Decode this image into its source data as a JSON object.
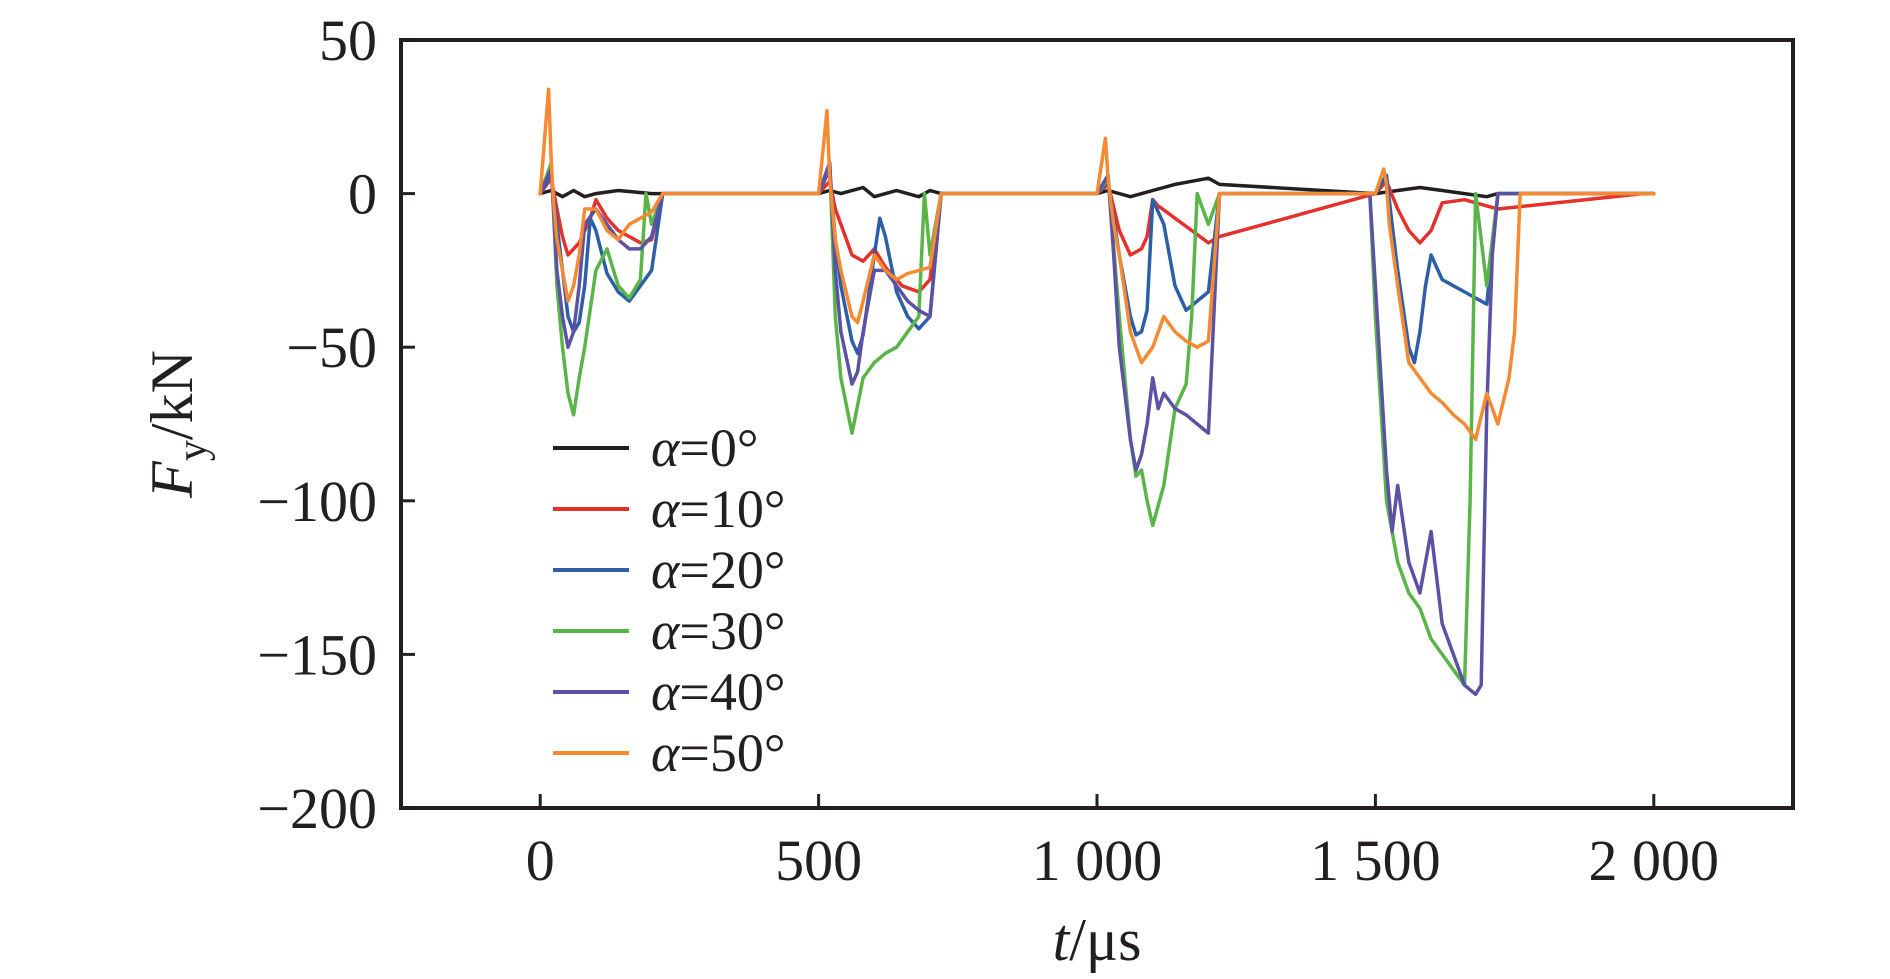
{
  "chart_data": {
    "type": "line",
    "xlabel": {
      "italic": "t",
      "rest": "/μs"
    },
    "ylabel": {
      "italic": "F",
      "sub": "y",
      "rest": "/kN"
    },
    "xlim": [
      -250,
      2250
    ],
    "ylim": [
      -200,
      50
    ],
    "x_ticks": [
      {
        "value": 0,
        "label": "0"
      },
      {
        "value": 500,
        "label": "500"
      },
      {
        "value": 1000,
        "label": "1 000"
      },
      {
        "value": 1500,
        "label": "1 500"
      },
      {
        "value": 2000,
        "label": "2 000"
      }
    ],
    "y_ticks": [
      {
        "value": 50,
        "label": "50"
      },
      {
        "value": 0,
        "label": "0"
      },
      {
        "value": -50,
        "label": "−50"
      },
      {
        "value": -100,
        "label": "−100"
      },
      {
        "value": -150,
        "label": "−150"
      },
      {
        "value": -200,
        "label": "−200"
      }
    ],
    "grid": false,
    "legend_position": "lower-left",
    "series": [
      {
        "name": "α=0°",
        "color": "#231f20",
        "x": [
          0,
          20,
          40,
          60,
          80,
          100,
          140,
          200,
          220,
          500,
          520,
          540,
          580,
          600,
          640,
          680,
          700,
          720,
          1000,
          1020,
          1060,
          1100,
          1140,
          1170,
          1200,
          1220,
          1500,
          1540,
          1580,
          1620,
          1660,
          1700,
          1720,
          1980,
          2000
        ],
        "y": [
          0,
          1,
          -1,
          1,
          -1,
          0,
          1,
          0,
          0,
          0,
          1,
          0,
          2,
          -1,
          1,
          -1,
          1,
          0,
          0,
          1,
          -1,
          1,
          3,
          4,
          5,
          3,
          0,
          1,
          2,
          1,
          0,
          -1,
          0,
          0,
          0
        ]
      },
      {
        "name": "α=10°",
        "color": "#e4312b",
        "x": [
          0,
          20,
          30,
          40,
          50,
          60,
          70,
          90,
          100,
          120,
          140,
          160,
          180,
          200,
          220,
          500,
          520,
          530,
          540,
          560,
          580,
          600,
          620,
          650,
          680,
          700,
          720,
          1000,
          1020,
          1040,
          1060,
          1080,
          1090,
          1100,
          1110,
          1140,
          1170,
          1200,
          1220,
          1500,
          1520,
          1540,
          1560,
          1580,
          1600,
          1620,
          1660,
          1700,
          1720,
          1980,
          2000
        ],
        "y": [
          0,
          5,
          -5,
          -14,
          -20,
          -18,
          -16,
          -8,
          -2,
          -8,
          -12,
          -14,
          -16,
          -15,
          0,
          0,
          4,
          -5,
          -10,
          -20,
          -22,
          -18,
          -24,
          -30,
          -32,
          -28,
          0,
          0,
          3,
          -12,
          -20,
          -18,
          -14,
          -2,
          -4,
          -8,
          -12,
          -16,
          -14,
          0,
          4,
          -5,
          -12,
          -16,
          -12,
          -3,
          -2,
          -4,
          -5,
          0,
          0
        ]
      },
      {
        "name": "α=20°",
        "color": "#2c5fa8",
        "x": [
          0,
          20,
          30,
          40,
          50,
          60,
          70,
          80,
          90,
          100,
          120,
          140,
          160,
          180,
          200,
          220,
          500,
          520,
          530,
          540,
          560,
          570,
          580,
          600,
          610,
          620,
          640,
          660,
          680,
          700,
          720,
          1000,
          1020,
          1030,
          1040,
          1060,
          1070,
          1080,
          1090,
          1100,
          1120,
          1140,
          1160,
          1180,
          1200,
          1220,
          1500,
          1520,
          1530,
          1540,
          1560,
          1570,
          1580,
          1590,
          1600,
          1620,
          1640,
          1660,
          1680,
          1700,
          1720,
          1980,
          2000
        ],
        "y": [
          0,
          6,
          -10,
          -25,
          -40,
          -45,
          -42,
          -30,
          -8,
          -12,
          -26,
          -32,
          -35,
          -30,
          -25,
          0,
          0,
          8,
          -15,
          -30,
          -48,
          -52,
          -46,
          -20,
          -8,
          -14,
          -32,
          -40,
          -44,
          -40,
          0,
          0,
          4,
          -8,
          -20,
          -40,
          -46,
          -45,
          -38,
          -2,
          -10,
          -30,
          -38,
          -35,
          -32,
          0,
          0,
          6,
          -10,
          -25,
          -50,
          -55,
          -45,
          -30,
          -20,
          -28,
          -30,
          -32,
          -34,
          -36,
          0,
          0,
          0
        ]
      },
      {
        "name": "α=30°",
        "color": "#5ab548",
        "x": [
          0,
          20,
          30,
          40,
          50,
          60,
          70,
          80,
          100,
          120,
          140,
          160,
          180,
          190,
          200,
          220,
          500,
          520,
          530,
          540,
          560,
          580,
          600,
          620,
          640,
          660,
          680,
          690,
          700,
          720,
          1000,
          1020,
          1040,
          1060,
          1070,
          1080,
          1090,
          1100,
          1120,
          1140,
          1160,
          1170,
          1180,
          1200,
          1220,
          1480,
          1490,
          1500,
          1520,
          1540,
          1560,
          1580,
          1600,
          1620,
          1640,
          1660,
          1670,
          1680,
          1700,
          1720,
          1980,
          2000
        ],
        "y": [
          0,
          10,
          -30,
          -50,
          -65,
          -72,
          -60,
          -50,
          -25,
          -18,
          -30,
          -34,
          -28,
          0,
          -10,
          0,
          0,
          10,
          -40,
          -60,
          -78,
          -60,
          -55,
          -52,
          -50,
          -45,
          -40,
          0,
          -20,
          0,
          0,
          5,
          -40,
          -80,
          -92,
          -90,
          -100,
          -108,
          -95,
          -70,
          -62,
          -40,
          0,
          -10,
          0,
          0,
          0,
          -40,
          -100,
          -120,
          -130,
          -135,
          -145,
          -150,
          -155,
          -160,
          -100,
          0,
          -30,
          0,
          0,
          0
        ]
      },
      {
        "name": "α=40°",
        "color": "#5b52a3",
        "x": [
          0,
          20,
          30,
          40,
          50,
          60,
          70,
          80,
          100,
          120,
          140,
          160,
          180,
          200,
          220,
          500,
          520,
          530,
          540,
          560,
          570,
          580,
          600,
          620,
          640,
          660,
          680,
          700,
          720,
          1000,
          1020,
          1030,
          1040,
          1060,
          1070,
          1080,
          1090,
          1100,
          1110,
          1120,
          1140,
          1160,
          1180,
          1200,
          1220,
          1480,
          1490,
          1500,
          1520,
          1530,
          1540,
          1560,
          1580,
          1600,
          1620,
          1640,
          1660,
          1680,
          1690,
          1700,
          1710,
          1720,
          1980,
          2000
        ],
        "y": [
          0,
          8,
          -25,
          -40,
          -50,
          -45,
          -30,
          -10,
          -5,
          -10,
          -15,
          -18,
          -18,
          -14,
          0,
          0,
          10,
          -25,
          -45,
          -62,
          -58,
          -45,
          -25,
          -25,
          -30,
          -35,
          -38,
          -40,
          0,
          0,
          6,
          -20,
          -50,
          -80,
          -90,
          -85,
          -75,
          -60,
          -70,
          -65,
          -70,
          -72,
          -75,
          -78,
          0,
          0,
          0,
          -30,
          -90,
          -110,
          -95,
          -120,
          -130,
          -110,
          -140,
          -150,
          -160,
          -163,
          -160,
          -70,
          -20,
          0,
          0,
          0
        ]
      },
      {
        "name": "α=50°",
        "color": "#f58a33",
        "x": [
          0,
          15,
          20,
          25,
          30,
          40,
          50,
          60,
          70,
          80,
          100,
          120,
          140,
          160,
          180,
          200,
          220,
          500,
          515,
          520,
          525,
          530,
          540,
          560,
          570,
          580,
          600,
          620,
          640,
          660,
          680,
          700,
          720,
          1000,
          1015,
          1020,
          1025,
          1030,
          1040,
          1060,
          1080,
          1100,
          1120,
          1140,
          1160,
          1180,
          1200,
          1220,
          1500,
          1515,
          1520,
          1525,
          1540,
          1560,
          1580,
          1600,
          1620,
          1640,
          1660,
          1680,
          1700,
          1720,
          1740,
          1750,
          1760,
          1980,
          2000
        ],
        "y": [
          0,
          34,
          10,
          -5,
          -15,
          -25,
          -35,
          -30,
          -20,
          -5,
          -5,
          -12,
          -15,
          -10,
          -8,
          -6,
          0,
          0,
          27,
          5,
          -5,
          -15,
          -25,
          -40,
          -42,
          -35,
          -20,
          -25,
          -28,
          -26,
          -25,
          -24,
          0,
          0,
          18,
          5,
          -3,
          -10,
          -20,
          -45,
          -55,
          -50,
          -40,
          -45,
          -48,
          -50,
          -48,
          0,
          0,
          8,
          3,
          -10,
          -30,
          -55,
          -60,
          -65,
          -68,
          -72,
          -75,
          -80,
          -65,
          -75,
          -60,
          -45,
          0,
          0,
          0
        ]
      }
    ]
  }
}
